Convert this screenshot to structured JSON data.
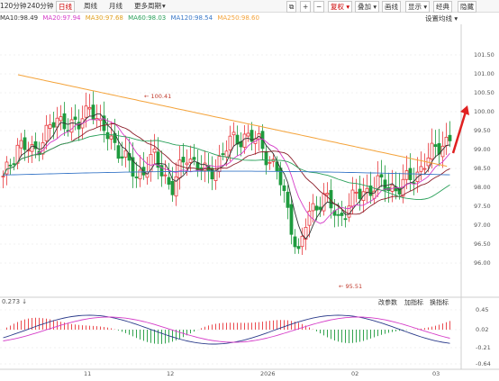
{
  "toolbar": {
    "periods": [
      "120分钟",
      "240分钟",
      "日线",
      "周线",
      "月线",
      "更多周期"
    ],
    "active_period": "日线",
    "right_buttons": [
      "复权",
      "叠加",
      "画线",
      "显示",
      "经典",
      "隐藏"
    ],
    "icons": [
      "copy-icon",
      "plus-icon",
      "minus-icon"
    ]
  },
  "ma": {
    "ma10": "MA10:98.49",
    "ma20": "MA20:97.94",
    "ma30": "MA30:97.68",
    "ma60": "MA60:98.03",
    "ma120": "MA120:98.54",
    "ma250": "MA250:98.60",
    "settings": "设置均线"
  },
  "colors": {
    "up": "#e8383d",
    "down": "#1f9b3e",
    "ma10": "#333333",
    "ma20": "#d53cc8",
    "ma30": "#e0a020",
    "ma60": "#2aa05a",
    "ma120": "#3a78c8",
    "ma250": "#f4a33a",
    "arrow": "#e02020"
  },
  "price_axis": [
    "101.50",
    "101.00",
    "100.50",
    "100.00",
    "99.50",
    "99.00",
    "98.50",
    "98.00",
    "97.50",
    "97.00",
    "96.50",
    "96.00"
  ],
  "annotations": {
    "high": "100.41",
    "low": "95.51"
  },
  "indicator": {
    "value": "0.273",
    "buttons": [
      "改参数",
      "加指标",
      "换指标"
    ],
    "axis": [
      "0.45",
      "0.02",
      "-0.21",
      "-0.64"
    ]
  },
  "x_axis": [
    "11",
    "12",
    "2026",
    "02",
    "03"
  ]
}
